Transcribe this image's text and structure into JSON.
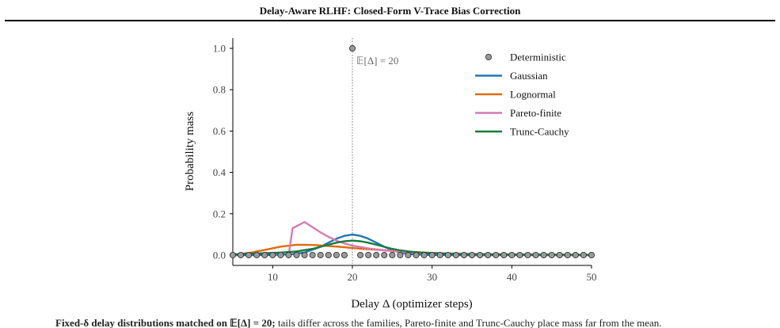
{
  "paper": {
    "running_title": "Delay-Aware RLHF: Closed-Form V-Trace Bias Correction",
    "caption_lead": "Fixed-δ delay distributions matched on 𝔼[Δ] = 20;",
    "caption_rest": "tails differ across the families, Pareto-finite and Trunc-Cauchy place mass far from the mean."
  },
  "chart_data": {
    "type": "line",
    "title": "",
    "xlabel": "Delay Δ (optimizer steps)",
    "ylabel": "Probability mass",
    "xlim": [
      5,
      50
    ],
    "ylim": [
      -0.05,
      1.05
    ],
    "xticks": [
      10,
      20,
      30,
      40,
      50
    ],
    "yticks": [
      0.0,
      0.2,
      0.4,
      0.6,
      0.8,
      1.0
    ],
    "ytick_labels": [
      "0.0",
      "0.2",
      "0.4",
      "0.6",
      "0.8",
      "1.0"
    ],
    "grid": false,
    "legend_position": "top-right",
    "annotation": {
      "text": "𝔼[Δ] = 20",
      "x": 20
    },
    "series": [
      {
        "name": "Deterministic",
        "kind": "markers",
        "color": "#9a9a9a",
        "x": [
          5,
          6,
          7,
          8,
          9,
          10,
          11,
          12,
          13,
          14,
          15,
          16,
          17,
          18,
          19,
          20,
          21,
          22,
          23,
          24,
          25,
          26,
          27,
          28,
          29,
          30,
          31,
          32,
          33,
          34,
          35,
          36,
          37,
          38,
          39,
          40,
          41,
          42,
          43,
          44,
          45,
          46,
          47,
          48,
          49,
          50
        ],
        "y": [
          0,
          0,
          0,
          0,
          0,
          0,
          0,
          0,
          0,
          0,
          0,
          0,
          0,
          0,
          0,
          1,
          0,
          0,
          0,
          0,
          0,
          0,
          0,
          0,
          0,
          0,
          0,
          0,
          0,
          0,
          0,
          0,
          0,
          0,
          0,
          0,
          0,
          0,
          0,
          0,
          0,
          0,
          0,
          0,
          0,
          0
        ]
      },
      {
        "name": "Gaussian",
        "kind": "line",
        "color": "#1f77b4",
        "x": [
          5,
          8,
          10,
          12,
          14,
          16,
          17,
          18,
          19,
          20,
          21,
          22,
          23,
          24,
          25,
          26,
          27,
          28,
          30,
          33,
          36,
          40,
          45,
          50
        ],
        "y": [
          0.0,
          0.0,
          0.001,
          0.003,
          0.012,
          0.04,
          0.06,
          0.079,
          0.093,
          0.099,
          0.093,
          0.079,
          0.06,
          0.04,
          0.024,
          0.012,
          0.006,
          0.003,
          0.0005,
          0.0,
          0.0,
          0.0,
          0.0,
          0.0
        ]
      },
      {
        "name": "Lognormal",
        "kind": "line",
        "color": "#e06c10",
        "x": [
          5,
          7,
          9,
          11,
          13,
          15,
          17,
          19,
          20,
          21,
          23,
          25,
          27,
          29,
          31,
          35,
          40,
          45,
          50
        ],
        "y": [
          0.002,
          0.01,
          0.025,
          0.041,
          0.05,
          0.049,
          0.044,
          0.038,
          0.034,
          0.031,
          0.026,
          0.021,
          0.016,
          0.012,
          0.009,
          0.004,
          0.002,
          0.001,
          0.0005
        ]
      },
      {
        "name": "Pareto-finite",
        "kind": "line",
        "color": "#d67ab1",
        "x": [
          12,
          12.5,
          13,
          14,
          15,
          16,
          17,
          18,
          19,
          20,
          22,
          24,
          26,
          28,
          30,
          35,
          40,
          45,
          50
        ],
        "y": [
          0.0,
          0.13,
          0.14,
          0.16,
          0.135,
          0.11,
          0.088,
          0.07,
          0.056,
          0.046,
          0.032,
          0.023,
          0.016,
          0.012,
          0.009,
          0.005,
          0.003,
          0.002,
          0.001
        ]
      },
      {
        "name": "Trunc-Cauchy",
        "kind": "line",
        "color": "#1a7a3e",
        "x": [
          5,
          7,
          9,
          11,
          13,
          15,
          16,
          17,
          18,
          19,
          20,
          21,
          22,
          23,
          24,
          25,
          26,
          27,
          28,
          30,
          33,
          36,
          40,
          45,
          50
        ],
        "y": [
          0.004,
          0.006,
          0.009,
          0.012,
          0.018,
          0.03,
          0.04,
          0.05,
          0.06,
          0.067,
          0.07,
          0.067,
          0.06,
          0.05,
          0.04,
          0.03,
          0.023,
          0.018,
          0.014,
          0.009,
          0.006,
          0.004,
          0.003,
          0.002,
          0.001
        ]
      }
    ]
  }
}
